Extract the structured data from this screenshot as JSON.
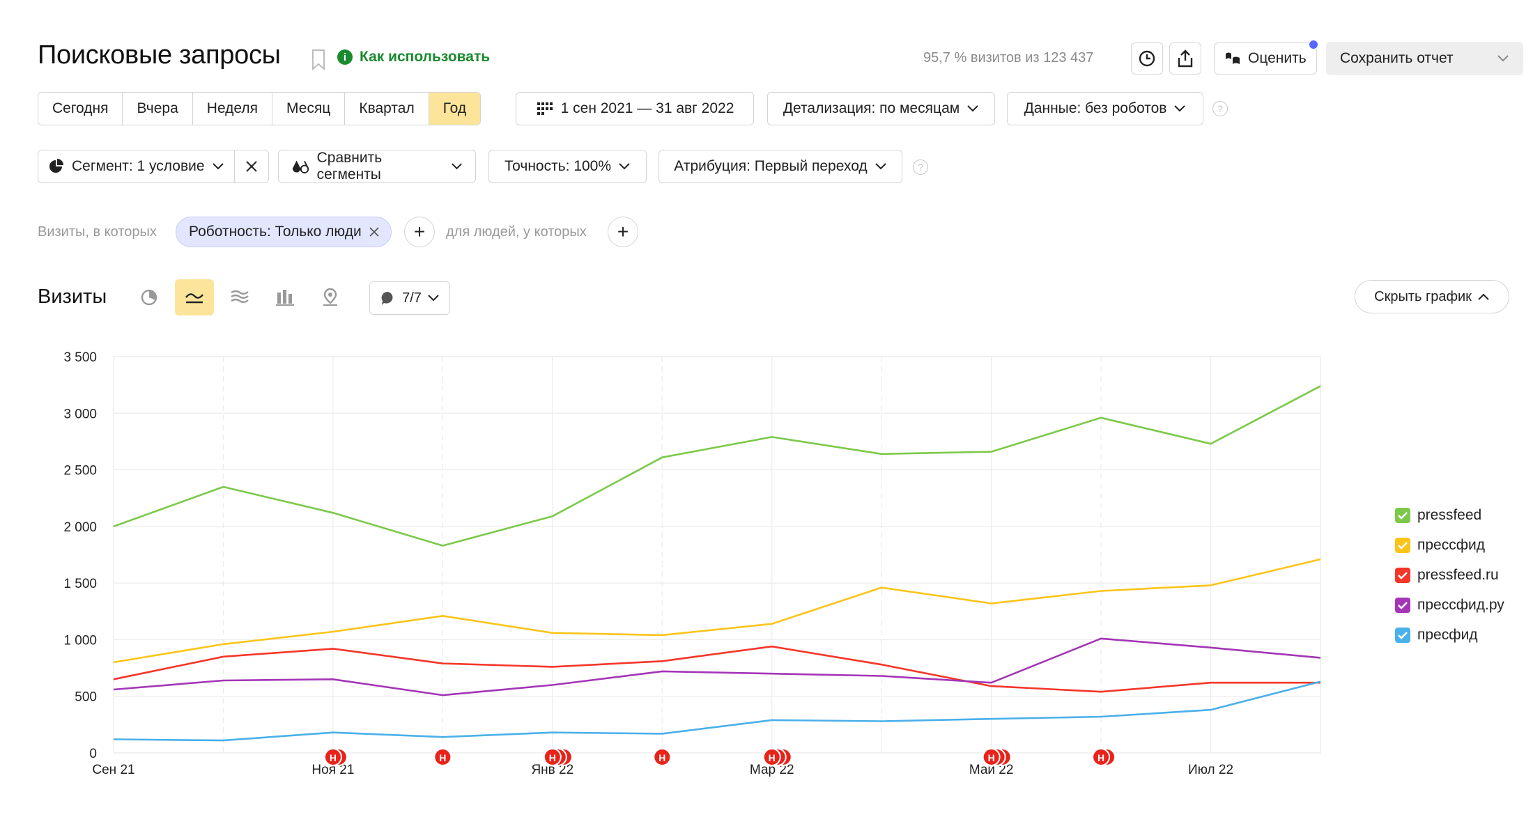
{
  "header": {
    "title": "Поисковые запросы",
    "how_to_use": "Как использовать",
    "visits_info": "95,7 % визитов из 123 437",
    "rate_label": "Оценить",
    "save_report": "Сохранить отчет"
  },
  "period": {
    "tabs": [
      "Сегодня",
      "Вчера",
      "Неделя",
      "Месяц",
      "Квартал",
      "Год"
    ],
    "active": "Год",
    "date_range": "1 сен 2021 — 31 авг 2022",
    "detail": "Детализация: по месяцам",
    "data": "Данные: без роботов"
  },
  "segment": {
    "segment": "Сегмент: 1 условие",
    "compare": "Сравнить сегменты",
    "accuracy": "Точность: 100%",
    "attribution": "Атрибуция: Первый переход"
  },
  "filters": {
    "visits_label": "Визиты, в которых",
    "chip": "Робот­ность: Только люди",
    "people_label": "для людей, у которых"
  },
  "chart_header": {
    "title": "Визиты",
    "notes_count": "7/7",
    "hide_chart": "Скрыть график"
  },
  "colors": {
    "pressfeed": "#7cc94a",
    "pressfid": "#fcc419",
    "pressfeed_ru": "#f53629",
    "pressfid_ru": "#a435b7",
    "presfid": "#4ab0ea"
  },
  "chart_data": {
    "type": "line",
    "x": [
      "Сен 21",
      "Окт 21",
      "Ноя 21",
      "Дек 21",
      "Янв 22",
      "Фев 22",
      "Мар 22",
      "Апр 22",
      "Май 22",
      "Июн 22",
      "Июл 22",
      "Авг 22"
    ],
    "x_tick_labels": [
      "Сен 21",
      "Ноя 21",
      "Янв 22",
      "Мар 22",
      "Май 22",
      "Июл 22"
    ],
    "y_ticks": [
      "0",
      "500",
      "1 000",
      "1 500",
      "2 000",
      "2 500",
      "3 000",
      "3 500"
    ],
    "ylim": [
      0,
      3500
    ],
    "grid": true,
    "legend": "right",
    "series": [
      {
        "name": "pressfeed",
        "color": "#7cc94a",
        "values": [
          2000,
          2350,
          2120,
          1830,
          2090,
          2610,
          2790,
          2640,
          2660,
          2960,
          2730,
          3240
        ]
      },
      {
        "name": "прессфид",
        "color": "#fcc419",
        "values": [
          800,
          960,
          1070,
          1210,
          1060,
          1040,
          1140,
          1460,
          1320,
          1430,
          1480,
          1710
        ]
      },
      {
        "name": "pressfeed.ru",
        "color": "#f53629",
        "values": [
          650,
          850,
          920,
          790,
          760,
          810,
          940,
          780,
          590,
          540,
          620,
          620
        ]
      },
      {
        "name": "прессфид.ру",
        "color": "#a435b7",
        "values": [
          560,
          640,
          650,
          510,
          600,
          720,
          700,
          680,
          620,
          1010,
          930,
          840
        ]
      },
      {
        "name": "пресфид",
        "color": "#4ab0ea",
        "values": [
          120,
          110,
          180,
          140,
          180,
          170,
          290,
          280,
          300,
          320,
          380,
          630
        ]
      }
    ],
    "annotations": [
      {
        "x": "Ноя 21",
        "count": 2,
        "label": "Н"
      },
      {
        "x": "Дек 21",
        "count": 1,
        "label": "Н"
      },
      {
        "x": "Янв 22",
        "count": 3,
        "label": "Н"
      },
      {
        "x": "Фев 22",
        "count": 1,
        "label": "Н"
      },
      {
        "x": "Мар 22",
        "count": 3,
        "label": "Н"
      },
      {
        "x": "Май 22",
        "count": 3,
        "label": "Н"
      },
      {
        "x": "Июн 22",
        "count": 2,
        "label": "Н"
      }
    ]
  }
}
